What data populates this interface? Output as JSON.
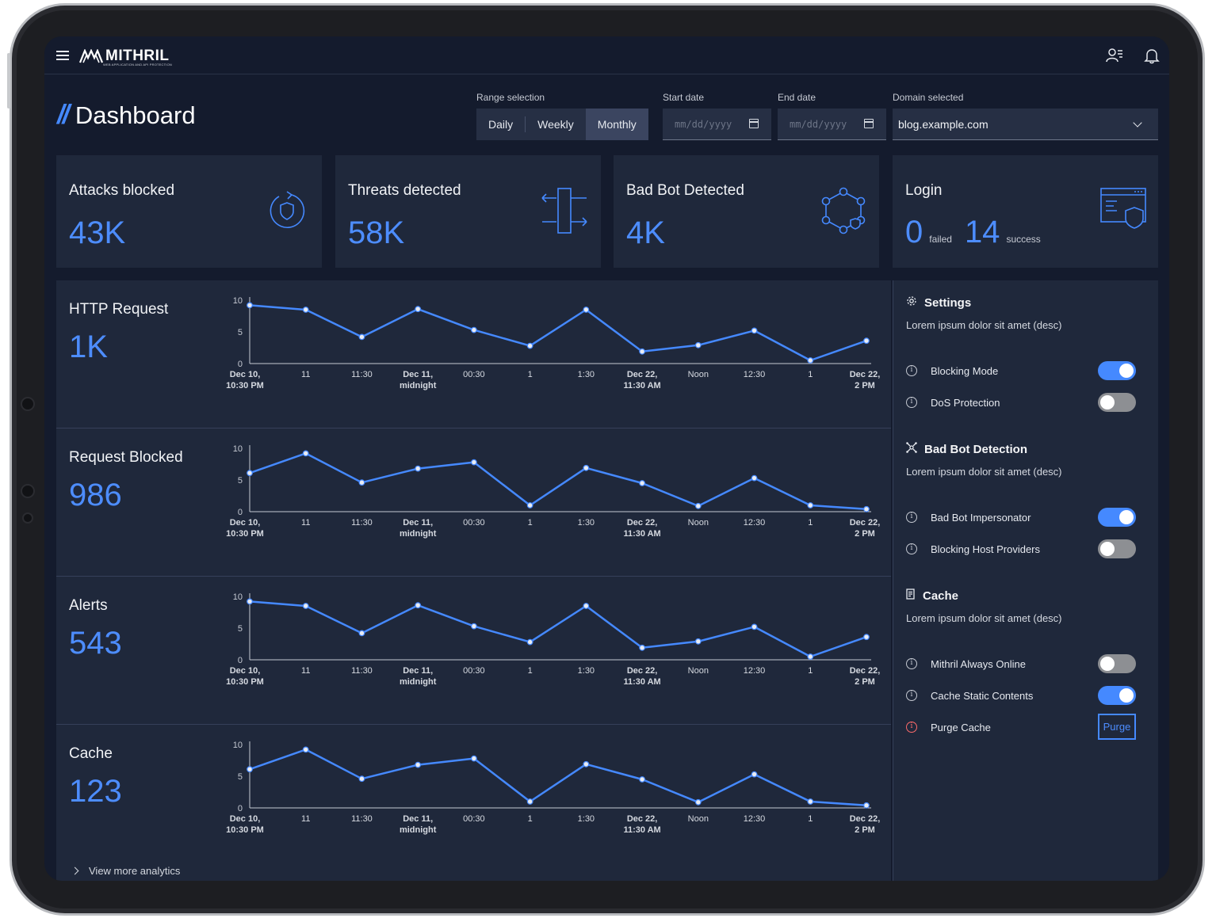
{
  "app": {
    "logo_text": "MITHRIL",
    "logo_subtitle": "WEB APPLICATION AND API PROTECTION",
    "colors": {
      "background": "#141b2d",
      "card": "#1f283b",
      "accent": "#4589ff"
    }
  },
  "header": {
    "title": "Dashboard",
    "range_label": "Range selection",
    "ranges": [
      "Daily",
      "Weekly",
      "Monthly"
    ],
    "selected_range": "Monthly",
    "start_label": "Start date",
    "start_placeholder": "mm/dd/yyyy",
    "end_label": "End date",
    "end_placeholder": "mm/dd/yyyy",
    "domain_label": "Domain selected",
    "domain_value": "blog.example.com"
  },
  "cards": [
    {
      "title": "Attacks blocked",
      "value": "43K",
      "icon": "shield-refresh-icon"
    },
    {
      "title": "Threats detected",
      "value": "58K",
      "icon": "traffic-arrows-icon"
    },
    {
      "title": "Bad Bot Detected",
      "value": "4K",
      "icon": "bot-network-icon"
    },
    {
      "title": "Login",
      "failed_value": "0",
      "failed_label": "failed",
      "success_value": "14",
      "success_label": "success",
      "icon": "browser-shield-icon"
    }
  ],
  "chart_data": [
    {
      "type": "line",
      "title": "HTTP Request",
      "headline": "1K",
      "categories": [
        "Dec 10, 10:30 PM",
        "11",
        "11:30",
        "Dec 11, midnight",
        "00:30",
        "1",
        "1:30",
        "Dec 22, 11:30 AM",
        "Noon",
        "12:30",
        "1",
        "Dec 22, 2 PM"
      ],
      "values": [
        9.2,
        8.5,
        4.2,
        8.6,
        5.3,
        2.8,
        8.5,
        1.9,
        2.9,
        5.2,
        0.5,
        3.6
      ],
      "ylim": [
        0,
        10
      ],
      "yticks": [
        0,
        5,
        10
      ]
    },
    {
      "type": "line",
      "title": "Request Blocked",
      "headline": "986",
      "categories": [
        "Dec 10, 10:30 PM",
        "11",
        "11:30",
        "Dec 11, midnight",
        "00:30",
        "1",
        "1:30",
        "Dec 22, 11:30 AM",
        "Noon",
        "12:30",
        "1",
        "Dec 22, 2 PM"
      ],
      "values": [
        6.1,
        9.2,
        4.6,
        6.8,
        7.8,
        1.0,
        6.9,
        4.5,
        0.9,
        5.3,
        1.0,
        0.4
      ],
      "ylim": [
        0,
        10
      ],
      "yticks": [
        0,
        5,
        10
      ]
    },
    {
      "type": "line",
      "title": "Alerts",
      "headline": "543",
      "categories": [
        "Dec 10, 10:30 PM",
        "11",
        "11:30",
        "Dec 11, midnight",
        "00:30",
        "1",
        "1:30",
        "Dec 22, 11:30 AM",
        "Noon",
        "12:30",
        "1",
        "Dec 22, 2 PM"
      ],
      "values": [
        9.2,
        8.5,
        4.2,
        8.6,
        5.3,
        2.8,
        8.5,
        1.9,
        2.9,
        5.2,
        0.5,
        3.6
      ],
      "ylim": [
        0,
        10
      ],
      "yticks": [
        0,
        5,
        10
      ]
    },
    {
      "type": "line",
      "title": "Cache",
      "headline": "123",
      "categories": [
        "Dec 10, 10:30 PM",
        "11",
        "11:30",
        "Dec 11, midnight",
        "00:30",
        "1",
        "1:30",
        "Dec 22, 11:30 AM",
        "Noon",
        "12:30",
        "1",
        "Dec 22, 2 PM"
      ],
      "values": [
        6.1,
        9.2,
        4.6,
        6.8,
        7.8,
        1.0,
        6.9,
        4.5,
        0.9,
        5.3,
        1.0,
        0.4
      ],
      "ylim": [
        0,
        10
      ],
      "yticks": [
        0,
        5,
        10
      ]
    }
  ],
  "view_more": "View more analytics",
  "settings": {
    "sections": [
      {
        "title": "Settings",
        "icon": "gear-icon",
        "desc": "Lorem ipsum dolor sit amet (desc)",
        "options": [
          {
            "label": "Blocking Mode",
            "type": "toggle",
            "on": true
          },
          {
            "label": "DoS Protection",
            "type": "toggle",
            "on": false
          }
        ]
      },
      {
        "title": "Bad Bot Detection",
        "icon": "bot-icon",
        "desc": "Lorem ipsum dolor sit amet (desc)",
        "options": [
          {
            "label": "Bad Bot Impersonator",
            "type": "toggle",
            "on": true
          },
          {
            "label": "Blocking Host Providers",
            "type": "toggle",
            "on": false
          }
        ]
      },
      {
        "title": "Cache",
        "icon": "cache-icon",
        "desc": "Lorem ipsum dolor sit amet (desc)",
        "options": [
          {
            "label": "Mithril Always Online",
            "type": "toggle",
            "on": false
          },
          {
            "label": "Cache Static Contents",
            "type": "toggle",
            "on": true
          },
          {
            "label": "Purge Cache",
            "type": "button",
            "button_label": "Purge",
            "warning": true
          }
        ]
      }
    ]
  }
}
